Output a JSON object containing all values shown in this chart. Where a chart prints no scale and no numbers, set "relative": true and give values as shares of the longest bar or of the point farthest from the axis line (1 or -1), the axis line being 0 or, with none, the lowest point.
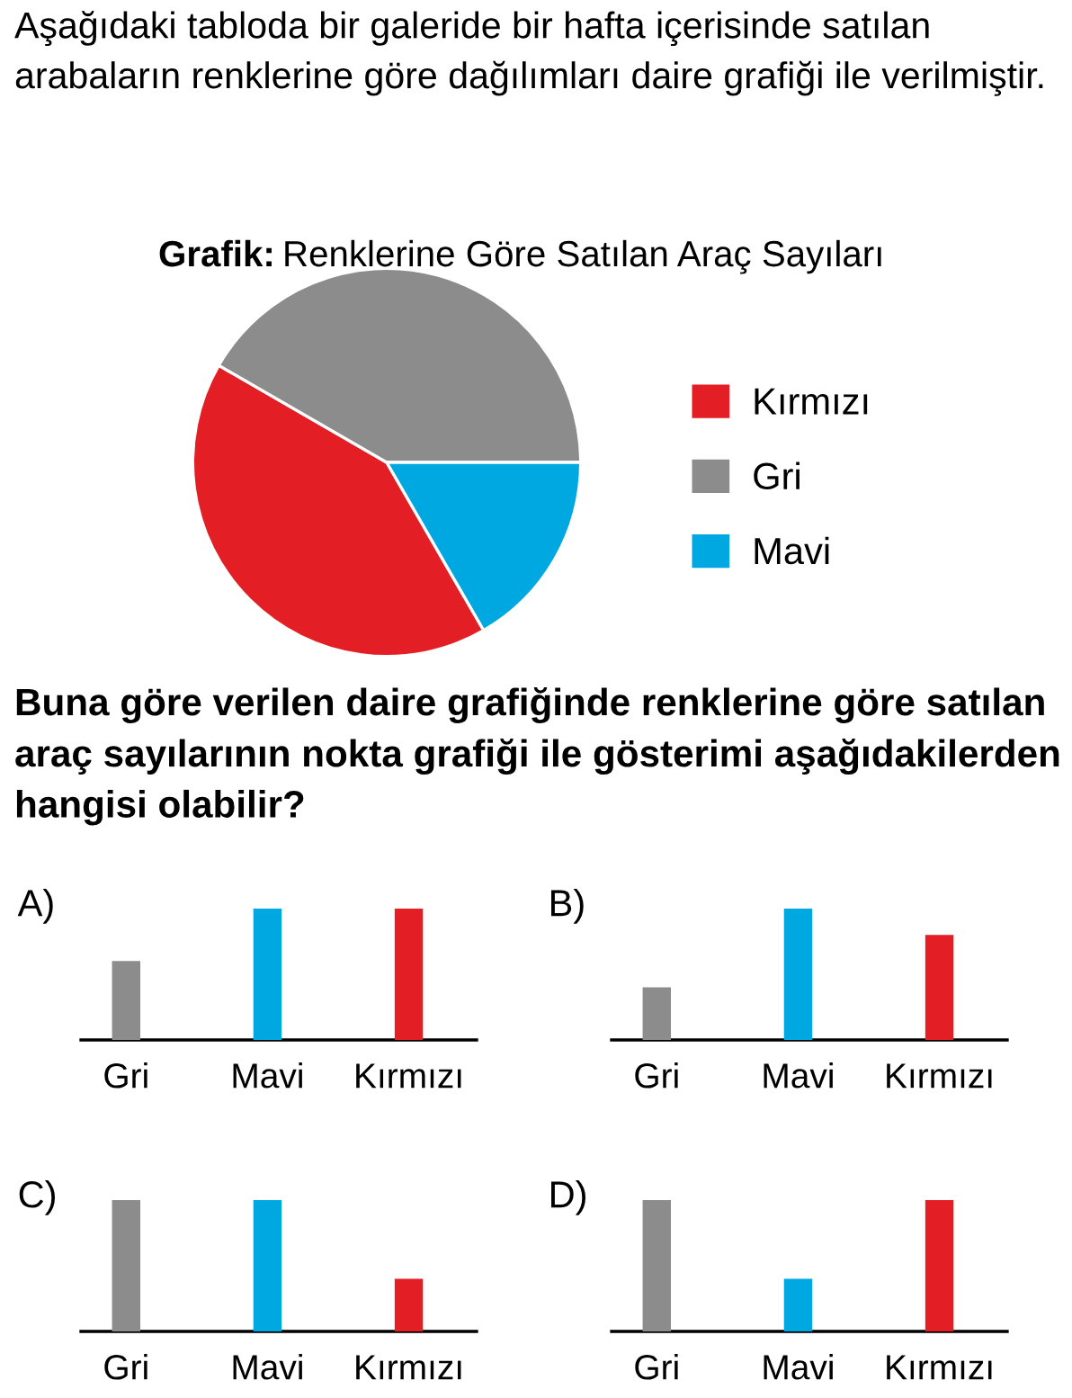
{
  "chart_data": [
    {
      "type": "pie",
      "title": "Grafik:  Renklerine Göre Satılan Araç Sayıları",
      "categories": [
        "Kırmızı",
        "Gri",
        "Mavi"
      ],
      "values": [
        41.67,
        41.67,
        16.67
      ],
      "colors": [
        "#e31e24",
        "#8c8c8c",
        "#00a8e1"
      ],
      "legend": "right",
      "annotations": [
        "Aşağıdaki tabloda bir galeride bir hafta içerisinde satılan arabaların renklerine göre dağılımları daire grafiği ile verilmiştir.",
        "Buna göre verilen daire grafiğinde renklerine göre satılan araç sayılarının nokta grafiği ile gösterimi aşağıdakilerden hangisi olabilir?"
      ]
    },
    {
      "type": "bar",
      "title": "A)",
      "relative": true,
      "categories": [
        "Gri",
        "Mavi",
        "Kırmızı"
      ],
      "values": [
        0.6,
        1,
        1
      ],
      "colors": [
        "#8c8c8c",
        "#00a8e1",
        "#e31e24"
      ],
      "tick_labels": "x"
    },
    {
      "type": "bar",
      "title": "B)",
      "relative": true,
      "categories": [
        "Gri",
        "Mavi",
        "Kırmızı"
      ],
      "values": [
        0.4,
        1,
        0.8
      ],
      "colors": [
        "#8c8c8c",
        "#00a8e1",
        "#e31e24"
      ],
      "tick_labels": "x"
    },
    {
      "type": "bar",
      "title": "C)",
      "relative": true,
      "categories": [
        "Gri",
        "Mavi",
        "Kırmızı"
      ],
      "values": [
        1,
        1,
        0.4
      ],
      "colors": [
        "#8c8c8c",
        "#00a8e1",
        "#e31e24"
      ],
      "tick_labels": "x"
    },
    {
      "type": "bar",
      "title": "D)",
      "relative": true,
      "categories": [
        "Gri",
        "Mavi",
        "Kırmızı"
      ],
      "values": [
        1,
        0.4,
        1
      ],
      "colors": [
        "#8c8c8c",
        "#00a8e1",
        "#e31e24"
      ],
      "tick_labels": "x"
    }
  ]
}
